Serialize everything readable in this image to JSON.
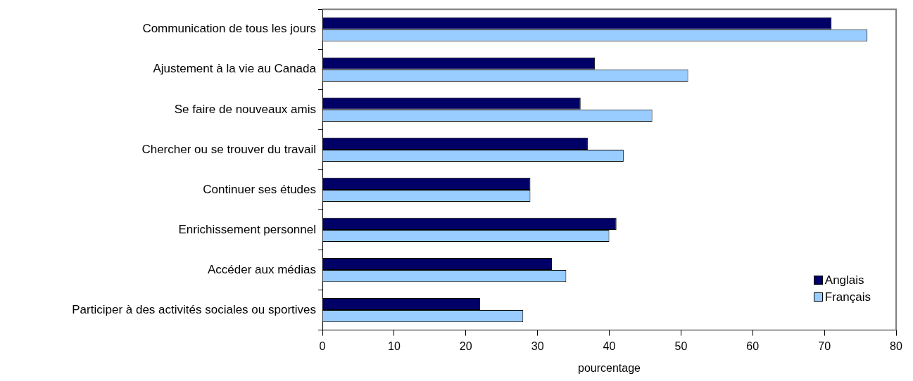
{
  "chart_data": {
    "type": "bar",
    "orientation": "horizontal",
    "xlabel": "pourcentage",
    "categories": [
      "Communication de tous les jours",
      "Ajustement à la vie au Canada",
      "Se faire de nouveaux amis",
      "Chercher ou se trouver du travail",
      "Continuer ses études",
      "Enrichissement personnel",
      "Accéder aux médias",
      "Participer à des activités sociales ou sportives"
    ],
    "series": [
      {
        "name": "Anglais",
        "color": "#000066",
        "values": [
          71,
          38,
          36,
          37,
          29,
          41,
          32,
          22
        ]
      },
      {
        "name": "Français",
        "color": "#99ccff",
        "values": [
          76,
          51,
          46,
          42,
          29,
          40,
          34,
          28
        ]
      }
    ],
    "xlim": [
      0,
      80
    ],
    "xticks": [
      0,
      10,
      20,
      30,
      40,
      50,
      60,
      70,
      80
    ],
    "grid": false,
    "legend": "bottom right"
  }
}
